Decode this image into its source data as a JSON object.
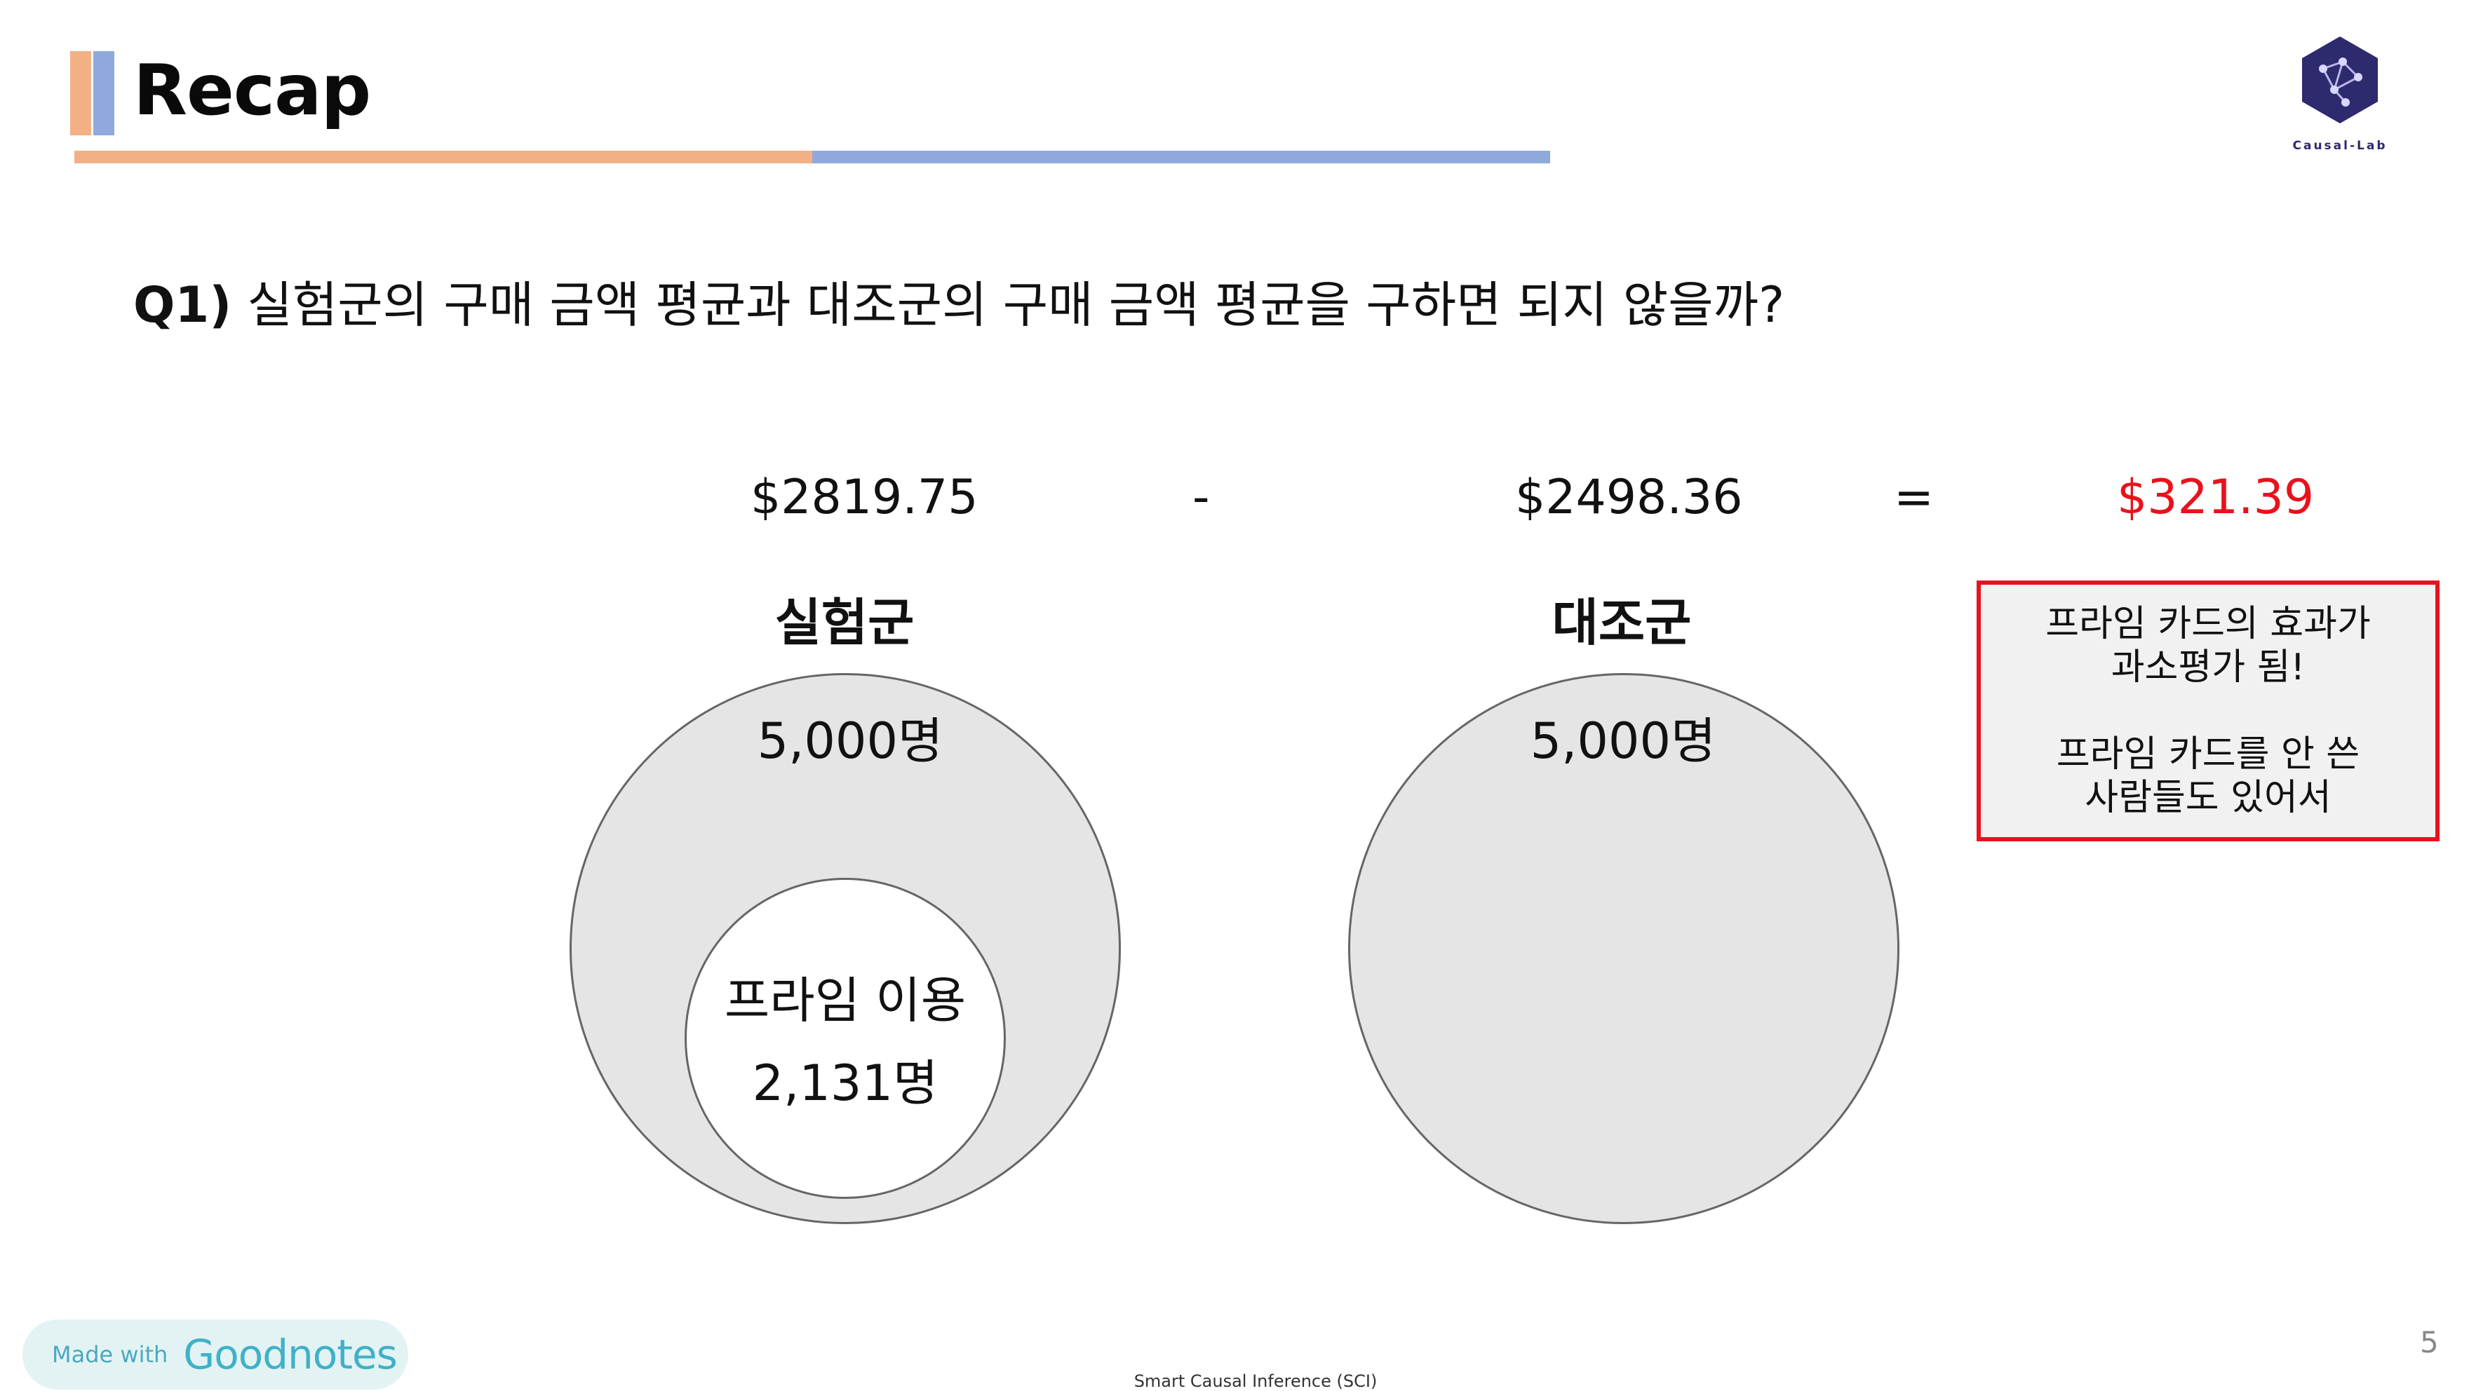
{
  "header": {
    "title": "Recap",
    "logo_text": "Causal-Lab",
    "colors": {
      "accent_orange": "#f2b184",
      "accent_blue": "#8fa9dd",
      "logo": "#2e2a6e"
    }
  },
  "question": {
    "label": "Q1)",
    "text": "실험군의 구매 금액 평균과 대조군의 구매 금액 평균을 구하면 되지 않을까?"
  },
  "equation": {
    "treatment_value": "$2819.75",
    "minus": "-",
    "control_value": "$2498.36",
    "equals": "=",
    "result": "$321.39",
    "result_color": "#e8121c"
  },
  "treatment": {
    "title": "실험군",
    "count": "5,000명",
    "prime_label": "프라임 이용",
    "prime_count": "2,131명"
  },
  "control": {
    "title": "대조군",
    "count": "5,000명"
  },
  "callout": {
    "line1": "프라임 카드의 효과가",
    "line2": "과소평가 됨!",
    "line3": "프라임 카드를 안 쓴",
    "line4": "사람들도 있어서",
    "border_color": "#e8121c"
  },
  "footer": {
    "badge_made": "Made with",
    "badge_brand": "Goodnotes",
    "text": "Smart Causal Inference (SCI)",
    "page_number": "5"
  }
}
